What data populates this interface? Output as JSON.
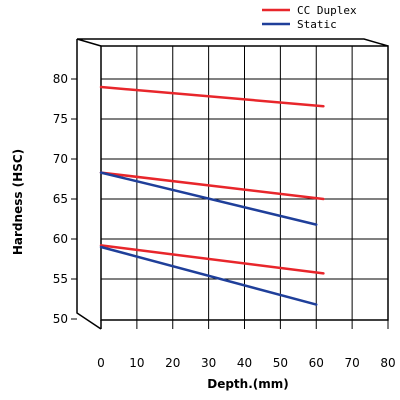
{
  "chart_data": {
    "type": "line",
    "xlabel": "Depth.(mm)",
    "ylabel": "Hardness (HSC)",
    "xlim": [
      0,
      80
    ],
    "ylim": [
      50,
      85
    ],
    "x_ticks": [
      0,
      10,
      20,
      30,
      40,
      50,
      60,
      70,
      80
    ],
    "y_ticks": [
      50,
      55,
      60,
      65,
      70,
      75,
      80
    ],
    "grid": true,
    "legend_position": "top-right",
    "legend": [
      {
        "label": "CC Duplex",
        "color": "#e8262b"
      },
      {
        "label": "Static",
        "color": "#1f3f9a"
      }
    ],
    "series": [
      {
        "group": "CC Duplex",
        "color": "#e8262b",
        "x": [
          0,
          62
        ],
        "y": [
          79.0,
          76.6
        ]
      },
      {
        "group": "CC Duplex",
        "color": "#e8262b",
        "x": [
          0,
          62
        ],
        "y": [
          68.3,
          65.0
        ]
      },
      {
        "group": "CC Duplex",
        "color": "#e8262b",
        "x": [
          0,
          62
        ],
        "y": [
          59.2,
          55.7
        ]
      },
      {
        "group": "Static",
        "color": "#1f3f9a",
        "x": [
          0,
          60
        ],
        "y": [
          68.3,
          61.8
        ]
      },
      {
        "group": "Static",
        "color": "#1f3f9a",
        "x": [
          0,
          60
        ],
        "y": [
          59.0,
          51.8
        ]
      }
    ]
  }
}
